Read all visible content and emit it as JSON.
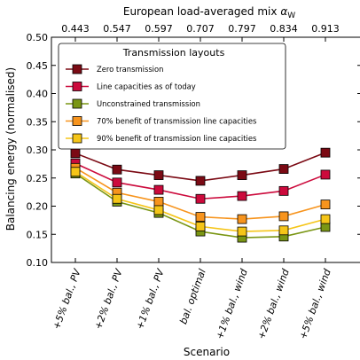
{
  "chart_data": {
    "type": "line",
    "ylabel": "Balancing energy (normalised)",
    "xlabel": "Scenario",
    "top_axis_label": "European load-averaged mix αW",
    "top_axis_label_main": "European load-averaged mix ",
    "top_axis_label_symbol": "α",
    "top_axis_label_subscript": "W",
    "categories": [
      "+5% bal., PV",
      "+2% bal., PV",
      "+1% bal., PV",
      "bal. optimal",
      "+1% bal., wind",
      "+2% bal., wind",
      "+5% bal., wind"
    ],
    "top_ticks": [
      "0.443",
      "0.547",
      "0.597",
      "0.707",
      "0.797",
      "0.834",
      "0.913"
    ],
    "ylim": [
      0.1,
      0.5
    ],
    "yticks": [
      "0.10",
      "0.15",
      "0.20",
      "0.25",
      "0.30",
      "0.35",
      "0.40",
      "0.45",
      "0.50"
    ],
    "legend_title": "Transmission layouts",
    "legend_position": "top-left",
    "grid": false,
    "series": [
      {
        "name": "Zero transmission",
        "color": "#7b0a14",
        "values": [
          0.294,
          0.265,
          0.255,
          0.245,
          0.255,
          0.266,
          0.295
        ]
      },
      {
        "name": "Line capacities as of today",
        "color": "#cc0a3c",
        "values": [
          0.276,
          0.242,
          0.229,
          0.213,
          0.218,
          0.227,
          0.256
        ]
      },
      {
        "name": "Unconstrained transmission",
        "color": "#7a9614",
        "values": [
          0.258,
          0.208,
          0.188,
          0.155,
          0.144,
          0.146,
          0.163
        ]
      },
      {
        "name": "70% benefit of transmission line capacities",
        "color": "#f7941d",
        "values": [
          0.268,
          0.224,
          0.208,
          0.181,
          0.177,
          0.182,
          0.203
        ]
      },
      {
        "name": "90% benefit of transmission line capacities",
        "color": "#f5c518",
        "values": [
          0.261,
          0.213,
          0.193,
          0.164,
          0.155,
          0.157,
          0.177
        ]
      }
    ]
  }
}
